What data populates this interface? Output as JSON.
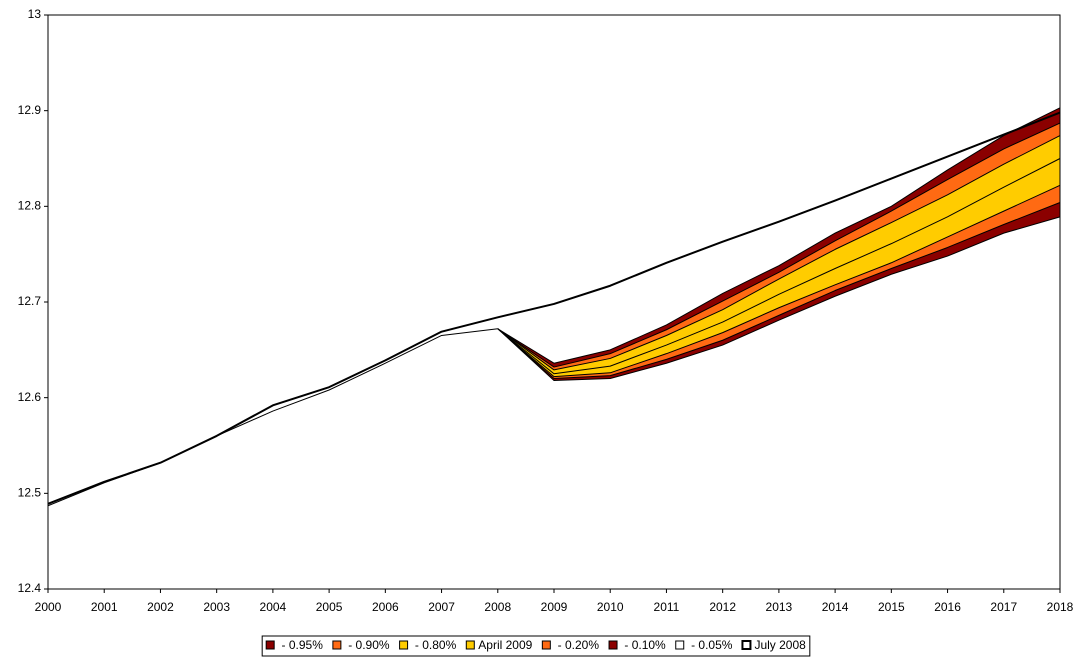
{
  "chart_data": {
    "type": "fan",
    "x": [
      2000,
      2001,
      2002,
      2003,
      2004,
      2005,
      2006,
      2007,
      2008,
      2009,
      2010,
      2011,
      2012,
      2013,
      2014,
      2015,
      2016,
      2017,
      2018
    ],
    "xlim": [
      2000,
      2018
    ],
    "xticks": [
      2000,
      2001,
      2002,
      2003,
      2004,
      2005,
      2006,
      2007,
      2008,
      2009,
      2010,
      2011,
      2012,
      2013,
      2014,
      2015,
      2016,
      2017,
      2018
    ],
    "ylim": [
      12.4,
      13
    ],
    "yticks": [
      12.4,
      12.5,
      12.6,
      12.7,
      12.8,
      12.9,
      13
    ],
    "grid": false,
    "legend": "bottom",
    "series": [
      {
        "name": " - 0.95%",
        "color": "#8b0000",
        "style": "band",
        "values": [
          null,
          null,
          null,
          null,
          null,
          null,
          null,
          null,
          12.672,
          12.618,
          12.62,
          12.636,
          12.655,
          12.681,
          12.706,
          12.729,
          12.748,
          12.772,
          12.789
        ]
      },
      {
        "name": " - 0.90%",
        "color": "#ff6a13",
        "style": "band",
        "values": [
          null,
          null,
          null,
          null,
          null,
          null,
          null,
          null,
          12.672,
          12.62,
          12.623,
          12.64,
          12.66,
          12.686,
          12.712,
          12.735,
          12.757,
          12.781,
          12.804
        ]
      },
      {
        "name": " - 0.80%",
        "color": "#ffcc00",
        "style": "band",
        "values": [
          null,
          null,
          null,
          null,
          null,
          null,
          null,
          null,
          12.672,
          12.622,
          12.626,
          12.646,
          12.668,
          12.694,
          12.718,
          12.741,
          12.768,
          12.795,
          12.822
        ]
      },
      {
        "name": "April 2009",
        "color": "#ffcc00",
        "style": "band",
        "values": [
          12.487,
          12.511,
          12.532,
          12.56,
          12.586,
          12.608,
          12.636,
          12.665,
          12.672,
          12.625,
          12.633,
          12.655,
          12.679,
          12.708,
          12.735,
          12.761,
          12.789,
          12.82,
          12.85
        ]
      },
      {
        "name": " - 0.20%",
        "color": "#ff6a13",
        "style": "band",
        "values": [
          null,
          null,
          null,
          null,
          null,
          null,
          null,
          null,
          12.672,
          12.629,
          12.641,
          12.665,
          12.692,
          12.724,
          12.755,
          12.783,
          12.812,
          12.844,
          12.874
        ]
      },
      {
        "name": " - 0.10%",
        "color": "#8b0000",
        "style": "band",
        "values": [
          null,
          null,
          null,
          null,
          null,
          null,
          null,
          null,
          12.672,
          12.632,
          12.646,
          12.671,
          12.701,
          12.731,
          12.764,
          12.795,
          12.828,
          12.86,
          12.887
        ]
      },
      {
        "name": " - 0.05%",
        "color": "#ffffff",
        "style": "band",
        "values": [
          null,
          null,
          null,
          null,
          null,
          null,
          null,
          null,
          12.672,
          12.636,
          12.65,
          12.676,
          12.709,
          12.738,
          12.772,
          12.8,
          12.838,
          12.874,
          12.903
        ]
      },
      {
        "name": "July 2008",
        "color": "#ffffff",
        "style": "line",
        "values": [
          12.489,
          12.512,
          12.532,
          12.56,
          12.592,
          12.611,
          12.639,
          12.669,
          12.684,
          12.698,
          12.717,
          12.741,
          12.763,
          12.784,
          12.806,
          12.829,
          12.852,
          12.875,
          12.898
        ]
      }
    ]
  }
}
